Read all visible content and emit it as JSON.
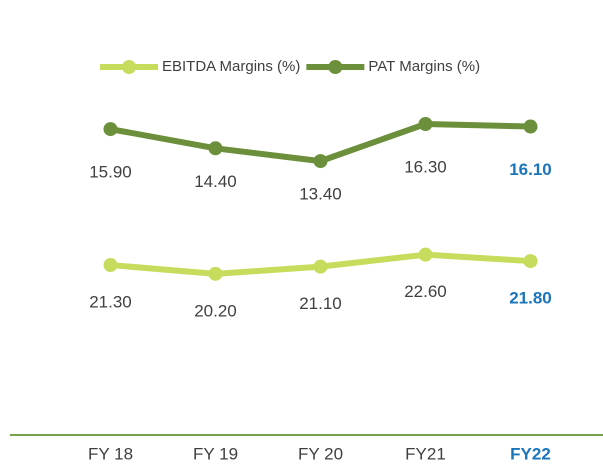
{
  "chart_data": {
    "type": "line",
    "categories": [
      "FY 18",
      "FY 19",
      "FY 20",
      "FY21",
      "FY22"
    ],
    "series": [
      {
        "name": "EBITDA Margins (%)",
        "color": "#c6dc5c",
        "axis": "y2",
        "values": [
          21.3,
          20.2,
          21.1,
          22.6,
          21.8
        ],
        "value_labels": [
          "21.30",
          "20.20",
          "21.10",
          "22.60",
          "21.80"
        ]
      },
      {
        "name": "PAT Margins (%)",
        "color": "#6b8f3a",
        "values": [
          15.9,
          14.4,
          13.4,
          16.3,
          16.1
        ],
        "value_labels": [
          "15.90",
          "14.40",
          "13.40",
          "16.30",
          "16.10"
        ]
      }
    ],
    "ylim": [
      -8,
      21.3
    ],
    "y2lim": [
      0,
      47
    ],
    "legend": "top",
    "highlight_index": 4,
    "highlight_color": "#1a75bb",
    "axis_color": "#76a04a"
  }
}
